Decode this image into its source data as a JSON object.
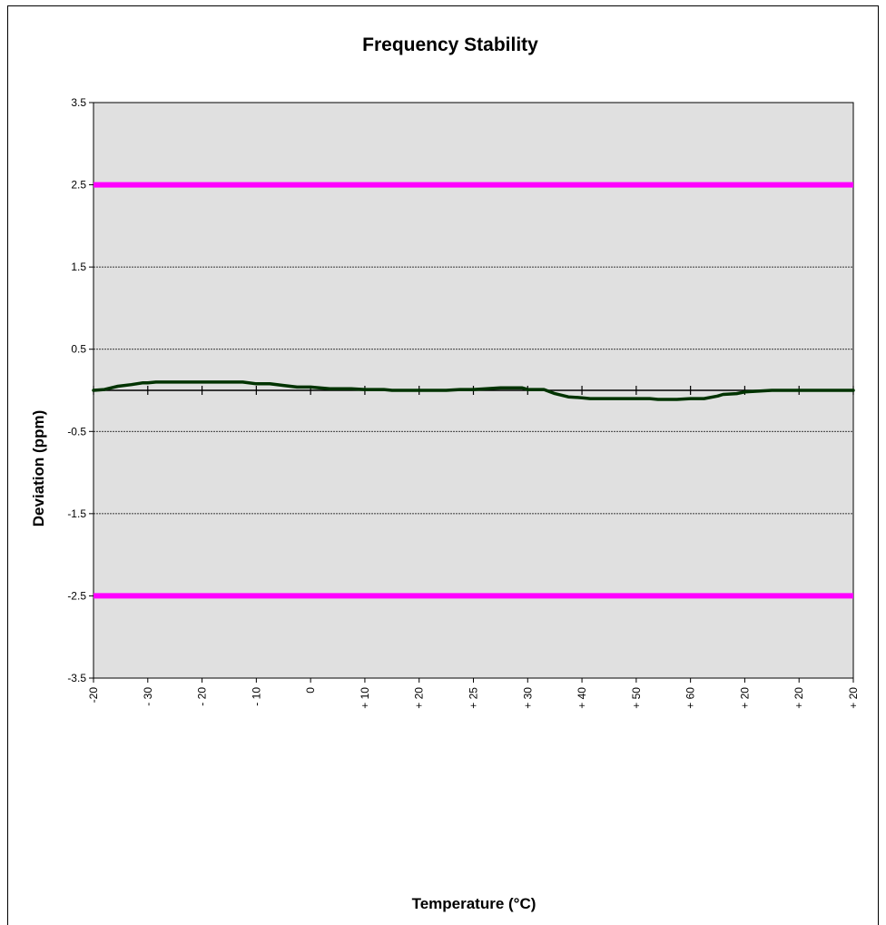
{
  "chart_data": {
    "type": "line",
    "title": "Frequency Stability",
    "xlabel": "Temperature (°C)",
    "ylabel": "Deviation (ppm)",
    "ylim": [
      -3.5,
      3.5
    ],
    "yticks": [
      -3.5,
      -2.5,
      -1.5,
      -0.5,
      0.5,
      1.5,
      2.5,
      3.5
    ],
    "ytick_labels": [
      "-3.5",
      "-2.5",
      "-1.5",
      "-0.5",
      "0.5",
      "1.5",
      "2.5",
      "3.5"
    ],
    "x_categories": [
      "-20",
      "- 30",
      "- 20",
      "- 10",
      "0",
      "+ 10",
      "+ 20",
      "+ 25",
      "+ 30",
      "+ 40",
      "+ 50",
      "+ 60",
      "+ 20",
      "+ 20",
      "+ 20"
    ],
    "grid": "horizontal dashed",
    "plot_background": "#e0e0e0",
    "limit_color": "#ff00ff",
    "series_color": "#003300",
    "limits": [
      2.5,
      -2.5
    ],
    "series": [
      {
        "x_index": [
          0,
          0.2,
          0.45,
          0.7,
          0.9,
          1.0,
          1.15,
          1.5,
          2.0,
          2.5,
          2.75,
          3.0,
          3.25,
          3.5,
          3.75,
          4.0,
          4.35,
          4.75,
          5.0,
          5.35,
          5.5,
          6.0,
          6.5,
          6.75,
          7.0,
          7.5,
          7.9,
          8.0,
          8.3,
          8.5,
          8.75,
          9.0,
          9.15,
          9.5,
          10.0,
          10.25,
          10.4,
          10.75,
          11.0,
          11.25,
          11.5,
          11.6,
          11.85,
          12.0,
          12.5,
          13.0,
          13.5,
          14.0
        ],
        "values": [
          0.0,
          0.01,
          0.05,
          0.07,
          0.09,
          0.09,
          0.1,
          0.1,
          0.1,
          0.1,
          0.1,
          0.08,
          0.08,
          0.06,
          0.04,
          0.04,
          0.02,
          0.02,
          0.01,
          0.01,
          0.0,
          0.0,
          0.0,
          0.01,
          0.01,
          0.03,
          0.03,
          0.01,
          0.01,
          -0.04,
          -0.08,
          -0.09,
          -0.1,
          -0.1,
          -0.1,
          -0.1,
          -0.11,
          -0.11,
          -0.1,
          -0.1,
          -0.07,
          -0.05,
          -0.04,
          -0.02,
          0.0,
          0.0,
          0.0,
          0.0
        ]
      }
    ]
  }
}
